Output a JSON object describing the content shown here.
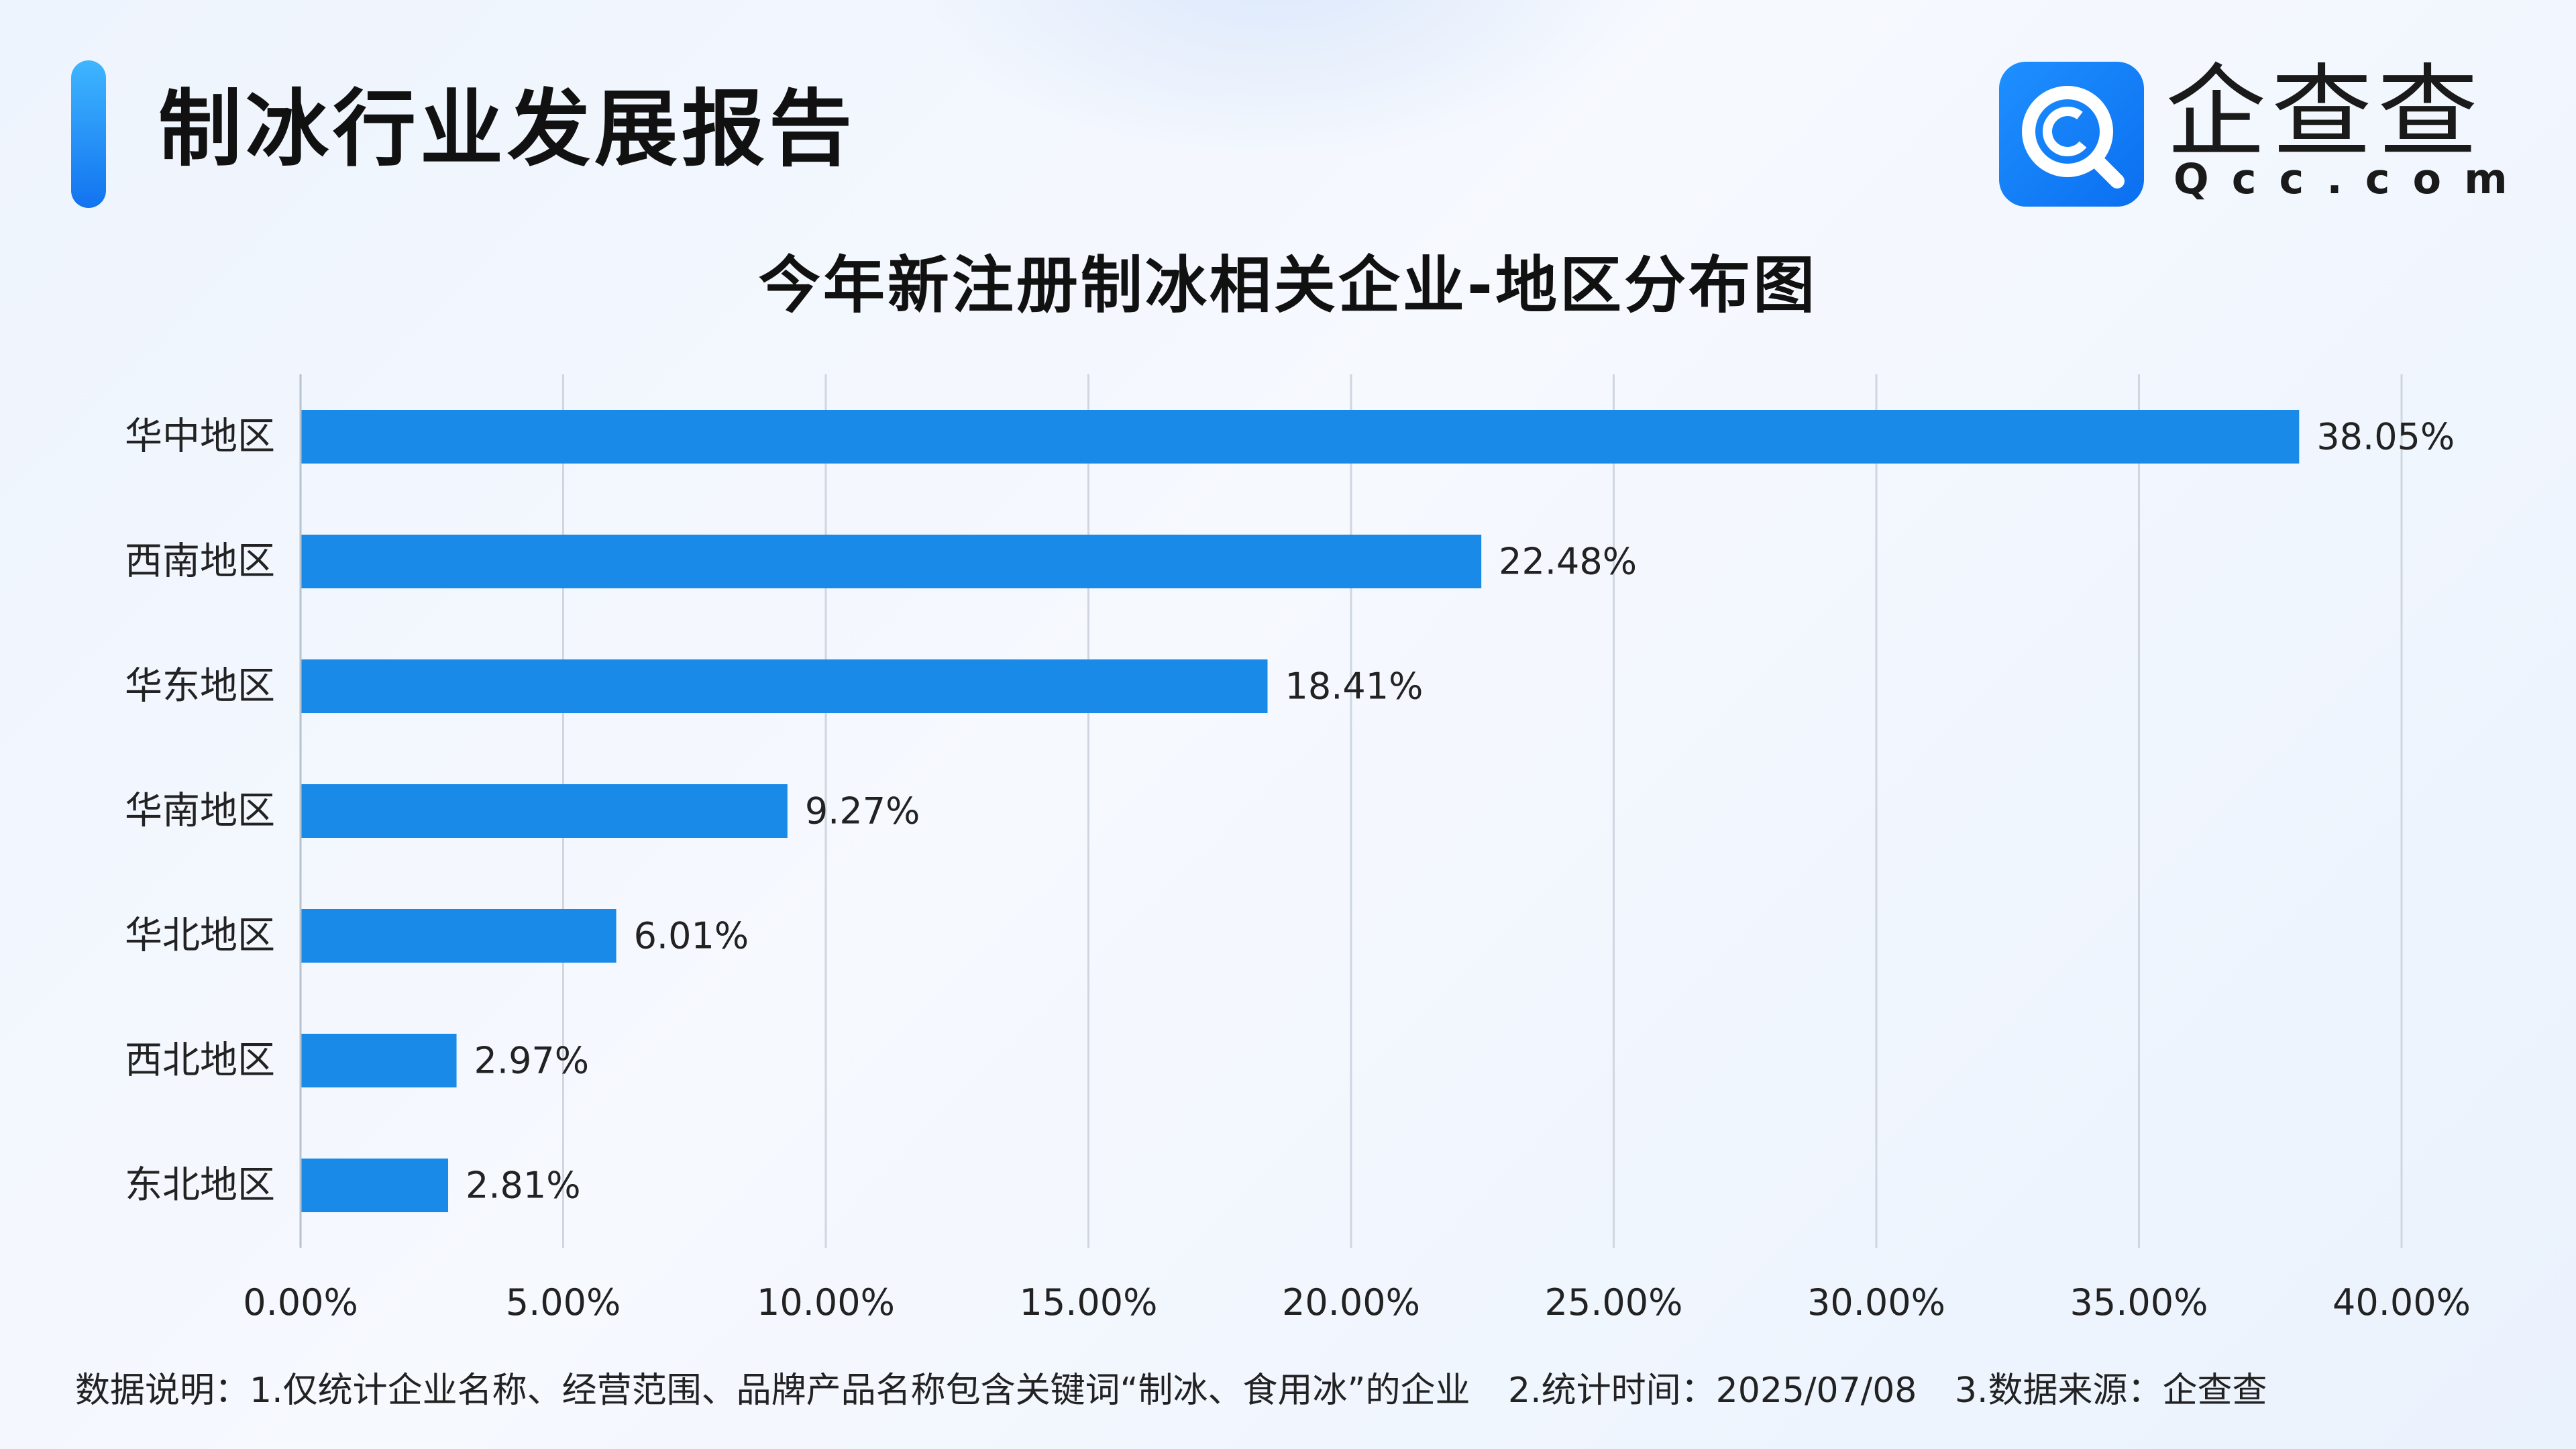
{
  "header": {
    "report_title": "制冰行业发展报告",
    "logo_name": "企查查",
    "logo_domain": "Qcc.com",
    "logo_icon": "qcc-magnifier-logo-icon"
  },
  "colors": {
    "bar": "#1a8ae8",
    "accent": "#1478f0",
    "grid": "#cfd6e0"
  },
  "chart_data": {
    "type": "bar",
    "orientation": "horizontal",
    "title": "今年新注册制冰相关企业-地区分布图",
    "categories": [
      "华中地区",
      "西南地区",
      "华东地区",
      "华南地区",
      "华北地区",
      "西北地区",
      "东北地区"
    ],
    "values": [
      38.05,
      22.48,
      18.41,
      9.27,
      6.01,
      2.97,
      2.81
    ],
    "value_labels": [
      "38.05%",
      "22.48%",
      "18.41%",
      "9.27%",
      "6.01%",
      "2.97%",
      "2.81%"
    ],
    "xlim": [
      0,
      40
    ],
    "xticks": [
      0,
      5,
      10,
      15,
      20,
      25,
      30,
      35,
      40
    ],
    "xtick_labels": [
      "0.00%",
      "5.00%",
      "10.00%",
      "15.00%",
      "20.00%",
      "25.00%",
      "30.00%",
      "35.00%",
      "40.00%"
    ],
    "grid": true,
    "legend": "none"
  },
  "footnote": {
    "part1": "数据说明：1.仅统计企业名称、经营范围、品牌产品名称包含关键词“制冰、食用冰”的企业",
    "part2": "2.统计时间：2025/07/08",
    "part3": "3.数据来源：企查查"
  }
}
